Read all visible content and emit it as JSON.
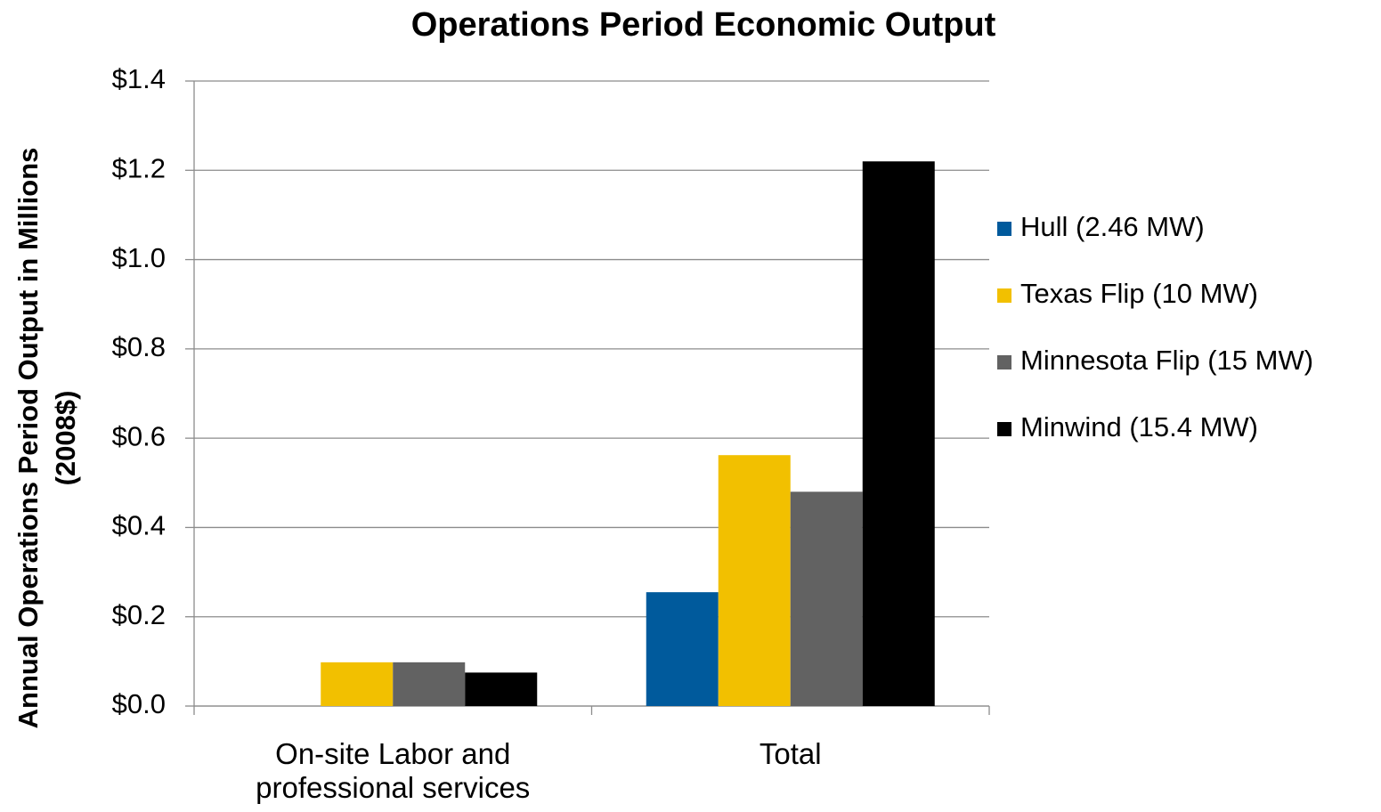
{
  "chart_data": {
    "type": "bar",
    "title": "Operations Period Economic Output",
    "y_label": [
      "Annual Operations Period Output in Millions",
      "(2008$)"
    ],
    "categories": [
      "On-site Labor and professional services",
      "Total"
    ],
    "series": [
      {
        "name": "Hull (2.46 MW)",
        "color": "#005a9c",
        "values": [
          0,
          0.255
        ]
      },
      {
        "name": "Texas Flip (10 MW)",
        "color": "#f2c000",
        "values": [
          0.098,
          0.562
        ]
      },
      {
        "name": "Minnesota Flip (15 MW)",
        "color": "#626262",
        "values": [
          0.098,
          0.48
        ]
      },
      {
        "name": "Minwind (15.4 MW)",
        "color": "#000000",
        "values": [
          0.075,
          1.22
        ]
      }
    ],
    "ylim": [
      0,
      1.4
    ],
    "yticks": [
      {
        "value": 0,
        "label": "$0.0"
      },
      {
        "value": 0.2,
        "label": "$0.2"
      },
      {
        "value": 0.4,
        "label": "$0.4"
      },
      {
        "value": 0.6,
        "label": "$0.6"
      },
      {
        "value": 0.8,
        "label": "$0.8"
      },
      {
        "value": 1.0,
        "label": "$1.0"
      },
      {
        "value": 1.2,
        "label": "$1.2"
      },
      {
        "value": 1.4,
        "label": "$1.4"
      }
    ],
    "grid": true,
    "legend": "right"
  }
}
